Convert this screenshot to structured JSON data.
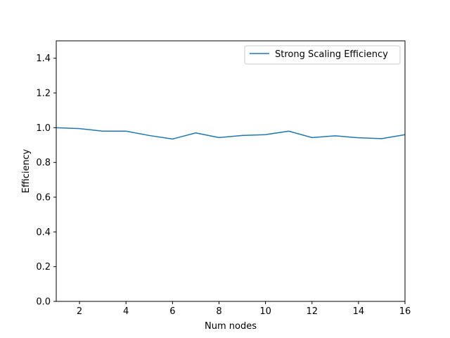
{
  "chart_data": {
    "type": "line",
    "title": "",
    "xlabel": "Num nodes",
    "ylabel": "Efficiency",
    "xlim": [
      1,
      16
    ],
    "ylim": [
      0,
      1.5
    ],
    "xticks": [
      2,
      4,
      6,
      8,
      10,
      12,
      14,
      16
    ],
    "yticks": [
      0.0,
      0.2,
      0.4,
      0.6,
      0.8,
      1.0,
      1.2,
      1.4
    ],
    "grid": false,
    "legend_position": "upper right",
    "series": [
      {
        "name": "Strong Scaling Efficiency",
        "color": "#1f77b4",
        "x": [
          1,
          2,
          3,
          4,
          5,
          6,
          7,
          8,
          9,
          10,
          11,
          12,
          13,
          14,
          15,
          16
        ],
        "y": [
          1.0,
          0.995,
          0.98,
          0.98,
          0.955,
          0.935,
          0.97,
          0.943,
          0.955,
          0.96,
          0.98,
          0.943,
          0.953,
          0.942,
          0.937,
          0.96
        ]
      }
    ]
  }
}
